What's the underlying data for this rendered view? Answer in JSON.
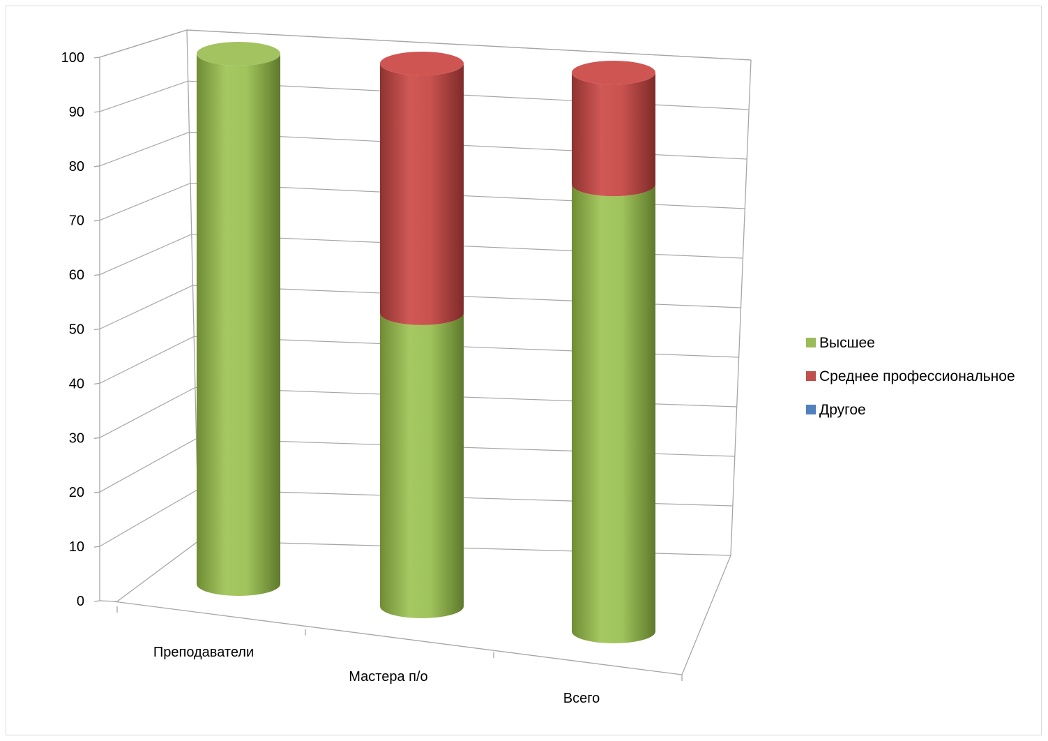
{
  "chart_data": {
    "type": "bar",
    "subtype": "3d-stacked-cylinder",
    "title": "",
    "xlabel": "",
    "ylabel": "",
    "categories": [
      "Преподаватели",
      "Мастера п/о",
      "Всего"
    ],
    "series": [
      {
        "name": "Высшее",
        "values": [
          100,
          54,
          80
        ],
        "color": "#9bbb59"
      },
      {
        "name": "Среднее профессиональное",
        "values": [
          0,
          46,
          20
        ],
        "color": "#c0504d"
      },
      {
        "name": "Другое",
        "values": [
          0,
          0,
          0
        ],
        "color": "#4f81bd"
      }
    ],
    "ylim": [
      0,
      100
    ],
    "yticks": [
      "0",
      "10",
      "20",
      "30",
      "40",
      "50",
      "60",
      "70",
      "80",
      "90",
      "100"
    ],
    "grid": true,
    "legend_position": "right"
  }
}
